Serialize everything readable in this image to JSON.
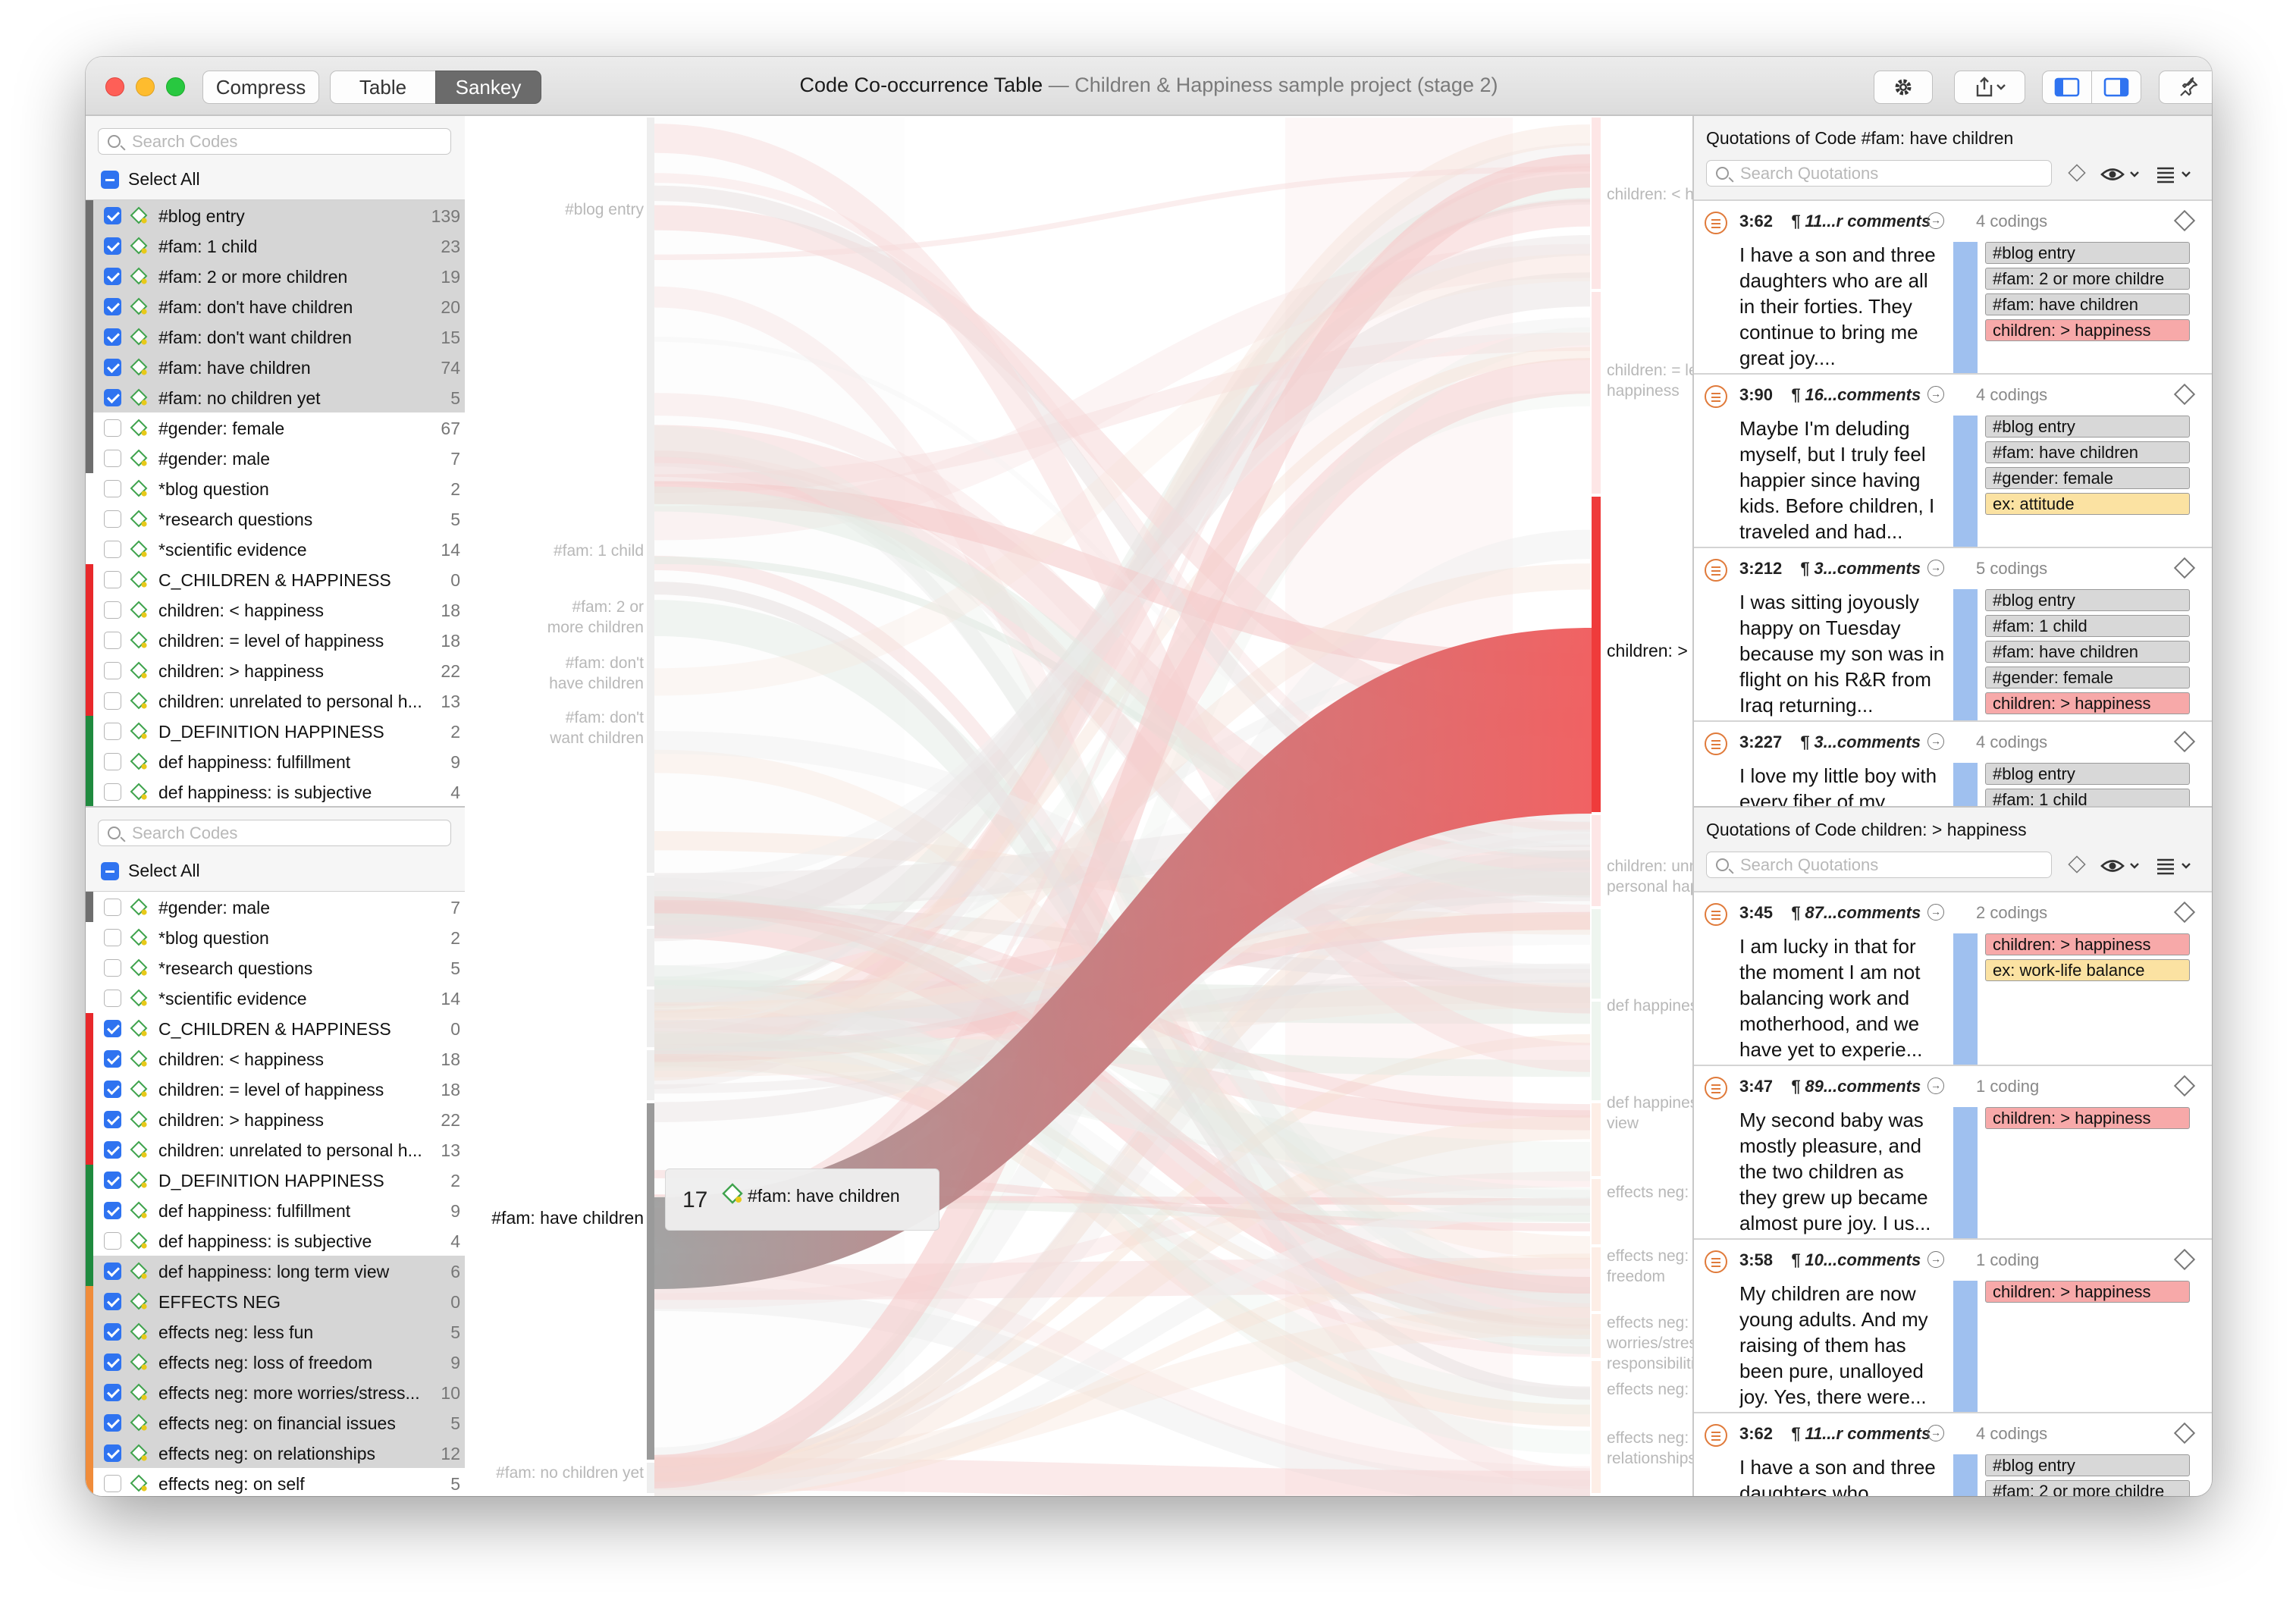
{
  "window": {
    "title": "Code Co-occurrence Table",
    "subtitle": "— Children & Happiness sample project (stage 2)",
    "compress_label": "Compress",
    "tabs": [
      {
        "label": "Table",
        "active": false
      },
      {
        "label": "Sankey",
        "active": true
      }
    ]
  },
  "colors": {
    "accent": "#2f73f0",
    "sankey_red": "#ef5a5a",
    "selected_row": "#d6d6d6",
    "quotation_bar": "#9fc0ef"
  },
  "codes_top": {
    "search_placeholder": "Search Codes",
    "select_all": "Select All",
    "items": [
      {
        "name": "#blog entry",
        "count": "139",
        "checked": true,
        "selected": true,
        "color": "#6e6e6e"
      },
      {
        "name": "#fam: 1 child",
        "count": "23",
        "checked": true,
        "selected": true,
        "color": "#6e6e6e"
      },
      {
        "name": "#fam: 2 or more  children",
        "count": "19",
        "checked": true,
        "selected": true,
        "color": "#6e6e6e"
      },
      {
        "name": "#fam: don't have children",
        "count": "20",
        "checked": true,
        "selected": true,
        "color": "#6e6e6e"
      },
      {
        "name": "#fam: don't want children",
        "count": "15",
        "checked": true,
        "selected": true,
        "color": "#6e6e6e"
      },
      {
        "name": "#fam: have children",
        "count": "74",
        "checked": true,
        "selected": true,
        "color": "#6e6e6e"
      },
      {
        "name": "#fam: no children yet",
        "count": "5",
        "checked": true,
        "selected": true,
        "color": "#6e6e6e"
      },
      {
        "name": "#gender: female",
        "count": "67",
        "checked": false,
        "selected": false,
        "color": "#6e6e6e"
      },
      {
        "name": "#gender: male",
        "count": "7",
        "checked": false,
        "selected": false,
        "color": "#6e6e6e"
      },
      {
        "name": "*blog question",
        "count": "2",
        "checked": false,
        "selected": false,
        "color": ""
      },
      {
        "name": "*research questions",
        "count": "5",
        "checked": false,
        "selected": false,
        "color": ""
      },
      {
        "name": "*scientific evidence",
        "count": "14",
        "checked": false,
        "selected": false,
        "color": ""
      },
      {
        "name": "C_CHILDREN & HAPPINESS",
        "count": "0",
        "checked": false,
        "selected": false,
        "color": "#e8282b"
      },
      {
        "name": "children: < happiness",
        "count": "18",
        "checked": false,
        "selected": false,
        "color": "#e8282b"
      },
      {
        "name": "children: = level of happiness",
        "count": "18",
        "checked": false,
        "selected": false,
        "color": "#e8282b"
      },
      {
        "name": "children: > happiness",
        "count": "22",
        "checked": false,
        "selected": false,
        "color": "#e8282b"
      },
      {
        "name": "children: unrelated to personal h...",
        "count": "13",
        "checked": false,
        "selected": false,
        "color": "#e8282b"
      },
      {
        "name": "D_DEFINITION HAPPINESS",
        "count": "2",
        "checked": false,
        "selected": false,
        "color": "#1f8a3e"
      },
      {
        "name": "def happiness: fulfillment",
        "count": "9",
        "checked": false,
        "selected": false,
        "color": "#1f8a3e"
      },
      {
        "name": "def happiness: is subjective",
        "count": "4",
        "checked": false,
        "selected": false,
        "color": "#1f8a3e"
      }
    ]
  },
  "codes_bottom": {
    "search_placeholder": "Search Codes",
    "select_all": "Select All",
    "items": [
      {
        "name": "#gender: male",
        "count": "7",
        "checked": false,
        "selected": false,
        "color": "#6e6e6e"
      },
      {
        "name": "*blog question",
        "count": "2",
        "checked": false,
        "selected": false,
        "color": ""
      },
      {
        "name": "*research questions",
        "count": "5",
        "checked": false,
        "selected": false,
        "color": ""
      },
      {
        "name": "*scientific evidence",
        "count": "14",
        "checked": false,
        "selected": false,
        "color": ""
      },
      {
        "name": "C_CHILDREN & HAPPINESS",
        "count": "0",
        "checked": true,
        "selected": false,
        "color": "#e8282b"
      },
      {
        "name": "children: < happiness",
        "count": "18",
        "checked": true,
        "selected": false,
        "color": "#e8282b"
      },
      {
        "name": "children: = level of happiness",
        "count": "18",
        "checked": true,
        "selected": false,
        "color": "#e8282b"
      },
      {
        "name": "children: > happiness",
        "count": "22",
        "checked": true,
        "selected": false,
        "color": "#e8282b"
      },
      {
        "name": "children: unrelated to personal h...",
        "count": "13",
        "checked": true,
        "selected": false,
        "color": "#e8282b"
      },
      {
        "name": "D_DEFINITION HAPPINESS",
        "count": "2",
        "checked": true,
        "selected": false,
        "color": "#1f8a3e"
      },
      {
        "name": "def happiness: fulfillment",
        "count": "9",
        "checked": true,
        "selected": false,
        "color": "#1f8a3e"
      },
      {
        "name": "def happiness: is subjective",
        "count": "4",
        "checked": false,
        "selected": false,
        "color": "#1f8a3e"
      },
      {
        "name": "def happiness: long term view",
        "count": "6",
        "checked": true,
        "selected": true,
        "color": "#1f8a3e"
      },
      {
        "name": "EFFECTS NEG",
        "count": "0",
        "checked": true,
        "selected": true,
        "color": "#f08c3a"
      },
      {
        "name": "effects neg: less fun",
        "count": "5",
        "checked": true,
        "selected": true,
        "color": "#f08c3a"
      },
      {
        "name": "effects neg: loss of freedom",
        "count": "9",
        "checked": true,
        "selected": true,
        "color": "#f08c3a"
      },
      {
        "name": "effects neg: more worries/stress...",
        "count": "10",
        "checked": true,
        "selected": true,
        "color": "#f08c3a"
      },
      {
        "name": "effects neg: on financial issues",
        "count": "5",
        "checked": true,
        "selected": true,
        "color": "#f08c3a"
      },
      {
        "name": "effects neg: on relationships",
        "count": "12",
        "checked": true,
        "selected": true,
        "color": "#f08c3a"
      },
      {
        "name": "effects neg: on self",
        "count": "5",
        "checked": false,
        "selected": false,
        "color": "#f08c3a"
      }
    ]
  },
  "sankey": {
    "left_nodes": [
      {
        "label": "#blog entry",
        "active": false
      },
      {
        "label": "#fam: 1 child",
        "active": false
      },
      {
        "label": "#fam: 2 or more  children",
        "active": false
      },
      {
        "label": "#fam: don't have children",
        "active": false
      },
      {
        "label": "#fam: don't want children",
        "active": false
      },
      {
        "label": "#fam: have children",
        "active": true
      },
      {
        "label": "#fam: no children yet",
        "active": false
      }
    ],
    "right_nodes": [
      {
        "label": "children: < happiness",
        "active": false
      },
      {
        "label": "children: = level of happiness",
        "active": false
      },
      {
        "label": "children: > happiness",
        "active": true
      },
      {
        "label": "children: unrelated to personal happiness",
        "active": false
      },
      {
        "label": "def happiness: fulfillment",
        "active": false
      },
      {
        "label": "def happiness: long term view",
        "active": false
      },
      {
        "label": "effects neg: less fun",
        "active": false
      },
      {
        "label": "effects neg: loss of freedom",
        "active": false
      },
      {
        "label": "effects neg: more worries/stress/ responsibilities",
        "active": false
      },
      {
        "label": "effects neg: on...",
        "active": false
      },
      {
        "label": "effects neg: on relationships",
        "active": false
      }
    ],
    "tooltip": {
      "value": "17",
      "code": "#fam: have children"
    },
    "highlight_flow": {
      "from": "#fam: have children",
      "to": "children: > happiness",
      "value": 17
    }
  },
  "quotations_top": {
    "title": "Quotations of Code #fam: have children",
    "search_placeholder": "Search Quotations",
    "items": [
      {
        "ref": "3:62",
        "meta": "¶ 11...r comments",
        "count": "4 codings",
        "text": "I have a son and three daughters who are all in their forties. They continue to bring me great joy....",
        "codes": [
          {
            "label": "#blog entry",
            "bg": "#d8d8d8"
          },
          {
            "label": "#fam: 2 or more  childre",
            "bg": "#d8d8d8"
          },
          {
            "label": "#fam: have children",
            "bg": "#d8d8d8"
          },
          {
            "label": "children: > happiness",
            "bg": "#f7a9a9"
          }
        ]
      },
      {
        "ref": "3:90",
        "meta": "¶ 16...comments",
        "count": "4 codings",
        "text": "Maybe I'm deluding myself, but I truly feel happier since having kids. Before children, I traveled and had...",
        "codes": [
          {
            "label": "#blog entry",
            "bg": "#d8d8d8"
          },
          {
            "label": "#fam: have children",
            "bg": "#d8d8d8"
          },
          {
            "label": "#gender: female",
            "bg": "#d8d8d8"
          },
          {
            "label": "ex: attitude",
            "bg": "#fbe2a2"
          }
        ]
      },
      {
        "ref": "3:212",
        "meta": "¶ 3...comments",
        "count": "5 codings",
        "text": "I was sitting joyously happy on Tuesday because my son was in flight on his R&R from Iraq returning...",
        "codes": [
          {
            "label": "#blog entry",
            "bg": "#d8d8d8"
          },
          {
            "label": "#fam: 1 child",
            "bg": "#d8d8d8"
          },
          {
            "label": "#fam: have children",
            "bg": "#d8d8d8"
          },
          {
            "label": "#gender: female",
            "bg": "#d8d8d8"
          },
          {
            "label": "children: > happiness",
            "bg": "#f7a9a9"
          }
        ]
      },
      {
        "ref": "3:227",
        "meta": "¶ 3...comments",
        "count": "4 codings",
        "text": "I love my little boy with every fiber of my",
        "codes": [
          {
            "label": "#blog entry",
            "bg": "#d8d8d8"
          },
          {
            "label": "#fam: 1 child",
            "bg": "#d8d8d8"
          }
        ]
      }
    ]
  },
  "quotations_bottom": {
    "title": "Quotations of Code children: > happiness",
    "search_placeholder": "Search Quotations",
    "items": [
      {
        "ref": "3:45",
        "meta": "¶ 87...comments",
        "count": "2 codings",
        "text": "I am lucky in that for the moment I am not balancing work and motherhood, and we have yet to experie...",
        "codes": [
          {
            "label": "children: > happiness",
            "bg": "#f7a9a9"
          },
          {
            "label": "ex: work-life balance",
            "bg": "#fbe2a2"
          }
        ]
      },
      {
        "ref": "3:47",
        "meta": "¶ 89...comments",
        "count": "1 coding",
        "text": "My second baby was mostly pleasure, and the two children as they grew up became almost pure joy. I us...",
        "codes": [
          {
            "label": "children: > happiness",
            "bg": "#f7a9a9"
          }
        ]
      },
      {
        "ref": "3:58",
        "meta": "¶ 10...comments",
        "count": "1 coding",
        "text": "My children are now young adults. And my raising of them has been pure, unalloyed joy. Yes, there were...",
        "codes": [
          {
            "label": "children: > happiness",
            "bg": "#f7a9a9"
          }
        ]
      },
      {
        "ref": "3:62",
        "meta": "¶ 11...r comments",
        "count": "4 codings",
        "text": "I have a son and three daughters who",
        "codes": [
          {
            "label": "#blog entry",
            "bg": "#d8d8d8"
          },
          {
            "label": "#fam: 2 or more  childre",
            "bg": "#d8d8d8"
          }
        ]
      }
    ]
  }
}
